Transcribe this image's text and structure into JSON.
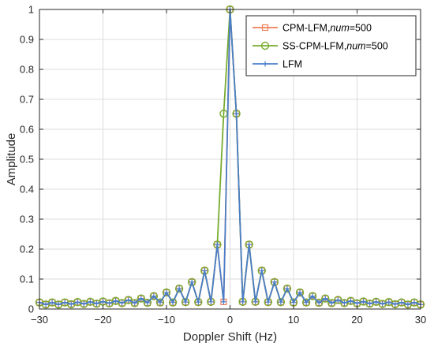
{
  "chart_data": {
    "type": "line",
    "title": "",
    "xlabel": "Doppler Shift (Hz)",
    "ylabel": "Amplitude",
    "xlim": [
      -30,
      30
    ],
    "ylim": [
      0,
      1
    ],
    "xticks": [
      -30,
      -20,
      -10,
      0,
      10,
      20,
      30
    ],
    "xtick_labels": [
      "−30",
      "−20",
      "−10",
      "0",
      "10",
      "20",
      "30"
    ],
    "yticks": [
      0,
      0.1,
      0.2,
      0.3,
      0.4,
      0.5,
      0.6,
      0.7,
      0.8,
      0.9,
      1
    ],
    "ytick_labels": [
      "0",
      "0.1",
      "0.2",
      "0.3",
      "0.4",
      "0.5",
      "0.6",
      "0.7",
      "0.8",
      "0.9",
      "1"
    ],
    "grid": true,
    "legend_position": "top-right",
    "x": [
      -30,
      -29,
      -28,
      -27,
      -26,
      -25,
      -24,
      -23,
      -22,
      -21,
      -20,
      -19,
      -18,
      -17,
      -16,
      -15,
      -14,
      -13,
      -12,
      -11,
      -10,
      -9,
      -8,
      -7,
      -6,
      -5,
      -4,
      -3,
      -2,
      -1,
      0,
      1,
      2,
      3,
      4,
      5,
      6,
      7,
      8,
      9,
      10,
      11,
      12,
      13,
      14,
      15,
      16,
      17,
      18,
      19,
      20,
      21,
      22,
      23,
      24,
      25,
      26,
      27,
      28,
      29,
      30
    ],
    "series": [
      {
        "name_main": "CPM-LFM,",
        "name_italic": "num",
        "name_tail": "=500",
        "color": "#f07f5a",
        "marker": "square",
        "values": [
          0.022,
          0.015,
          0.022,
          0.015,
          0.022,
          0.016,
          0.023,
          0.017,
          0.024,
          0.018,
          0.025,
          0.019,
          0.027,
          0.02,
          0.03,
          0.02,
          0.035,
          0.021,
          0.043,
          0.022,
          0.055,
          0.022,
          0.068,
          0.023,
          0.09,
          0.023,
          0.128,
          0.024,
          0.215,
          0.024,
          1.0,
          0.652,
          0.024,
          0.215,
          0.024,
          0.128,
          0.023,
          0.09,
          0.023,
          0.068,
          0.022,
          0.055,
          0.022,
          0.043,
          0.021,
          0.035,
          0.02,
          0.03,
          0.02,
          0.027,
          0.019,
          0.025,
          0.018,
          0.024,
          0.017,
          0.023,
          0.016,
          0.022,
          0.015,
          0.022,
          0.015
        ]
      },
      {
        "name_main": "SS-CPM-LFM,",
        "name_italic": "num",
        "name_tail": "=500",
        "color": "#77ac30",
        "marker": "circle",
        "values": [
          0.022,
          0.015,
          0.022,
          0.015,
          0.022,
          0.016,
          0.023,
          0.017,
          0.024,
          0.018,
          0.025,
          0.019,
          0.027,
          0.02,
          0.03,
          0.02,
          0.035,
          0.021,
          0.043,
          0.022,
          0.055,
          0.022,
          0.068,
          0.023,
          0.09,
          0.023,
          0.128,
          0.024,
          0.215,
          0.652,
          1.0,
          0.652,
          0.024,
          0.215,
          0.024,
          0.128,
          0.023,
          0.09,
          0.023,
          0.068,
          0.022,
          0.055,
          0.022,
          0.043,
          0.021,
          0.035,
          0.02,
          0.03,
          0.02,
          0.027,
          0.019,
          0.025,
          0.018,
          0.024,
          0.017,
          0.023,
          0.016,
          0.022,
          0.015,
          0.022,
          0.015
        ]
      },
      {
        "name_main": "LFM",
        "name_italic": "",
        "name_tail": "",
        "color": "#4a7ec9",
        "marker": "plus",
        "values": [
          0.022,
          0.015,
          0.022,
          0.015,
          0.022,
          0.016,
          0.023,
          0.017,
          0.024,
          0.018,
          0.025,
          0.019,
          0.027,
          0.02,
          0.03,
          0.02,
          0.035,
          0.021,
          0.043,
          0.022,
          0.055,
          0.022,
          0.068,
          0.023,
          0.09,
          0.023,
          0.128,
          0.024,
          0.215,
          0.024,
          1.0,
          0.652,
          0.024,
          0.215,
          0.024,
          0.128,
          0.023,
          0.09,
          0.023,
          0.068,
          0.022,
          0.055,
          0.022,
          0.043,
          0.021,
          0.035,
          0.02,
          0.03,
          0.02,
          0.027,
          0.019,
          0.025,
          0.018,
          0.024,
          0.017,
          0.023,
          0.016,
          0.022,
          0.015,
          0.022,
          0.015
        ]
      }
    ]
  }
}
